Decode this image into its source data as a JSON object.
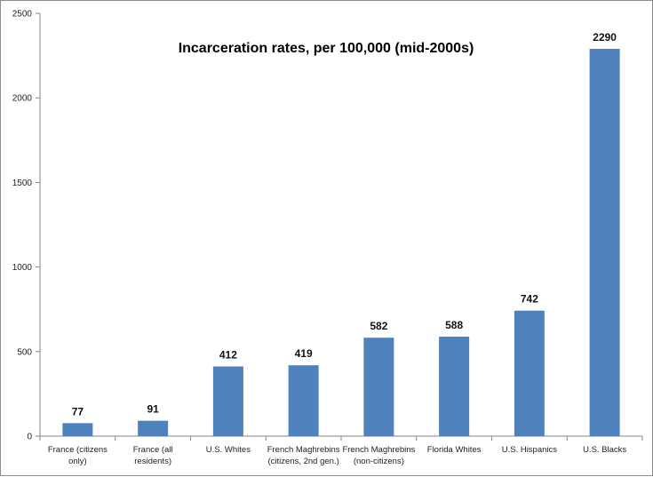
{
  "chart_data": {
    "type": "bar",
    "title": "Incarceration rates, per 100,000 (mid-2000s)",
    "xlabel": "",
    "ylabel": "",
    "ylim": [
      0,
      2500
    ],
    "yticks": [
      0,
      500,
      1000,
      1500,
      2000,
      2500
    ],
    "grid": false,
    "legend": "none",
    "bar_color": "#4f81bd",
    "categories": [
      [
        "France (citizens",
        "only)"
      ],
      [
        "France (all",
        "residents)"
      ],
      [
        "U.S. Whites"
      ],
      [
        "French Maghrebins",
        "(citizens, 2nd gen.)"
      ],
      [
        "French Maghrebins",
        "(non-citizens)"
      ],
      [
        "Florida Whites"
      ],
      [
        "U.S. Hispanics"
      ],
      [
        "U.S. Blacks"
      ]
    ],
    "values": [
      77,
      91,
      412,
      419,
      582,
      588,
      742,
      2290
    ]
  }
}
